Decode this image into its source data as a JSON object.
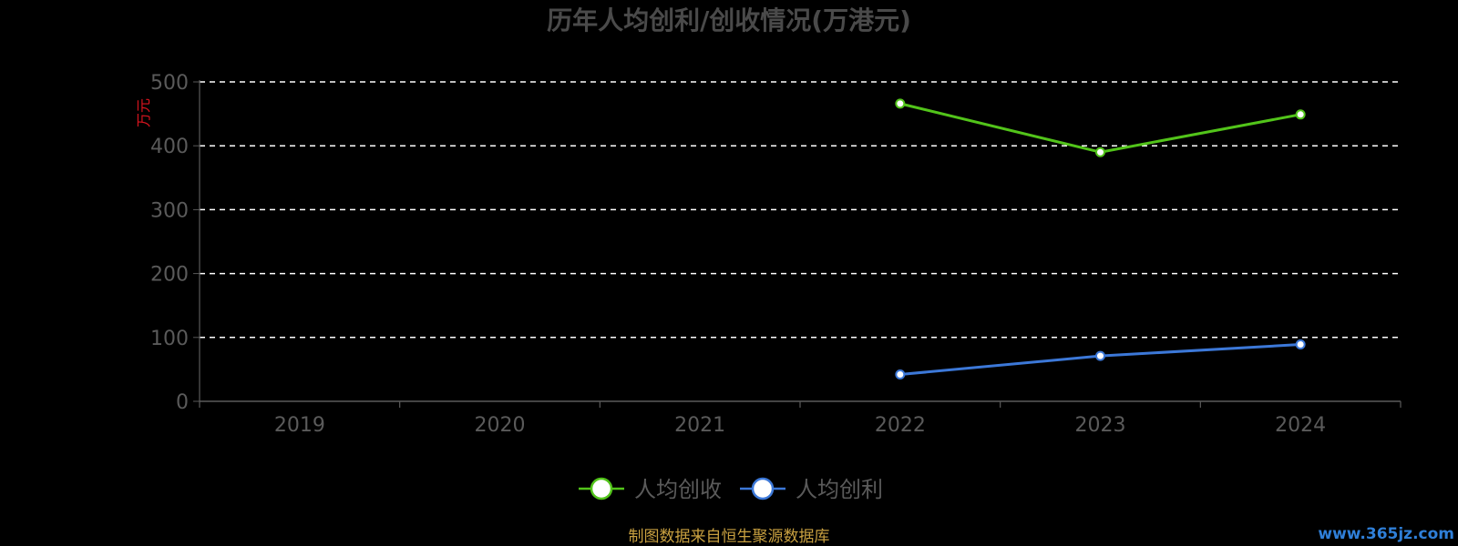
{
  "chart_data": {
    "type": "line",
    "title": "历年人均创利/创收情况(万港元)",
    "unit": "万元",
    "categories": [
      "2019",
      "2020",
      "2021",
      "2022",
      "2023",
      "2024"
    ],
    "ylim": [
      0,
      500
    ],
    "yticks": [
      0,
      100,
      200,
      300,
      400,
      500
    ],
    "grid": true,
    "legend_position": "bottom",
    "series": [
      {
        "name": "人均创收",
        "color": "#52c41a",
        "values": [
          null,
          null,
          null,
          466,
          390,
          449
        ]
      },
      {
        "name": "人均创利",
        "color": "#3c78d8",
        "values": [
          null,
          null,
          null,
          42,
          71,
          89
        ]
      }
    ]
  },
  "footer": {
    "source": "制图数据来自恒生聚源数据库",
    "watermark": "www.365jz.com"
  }
}
